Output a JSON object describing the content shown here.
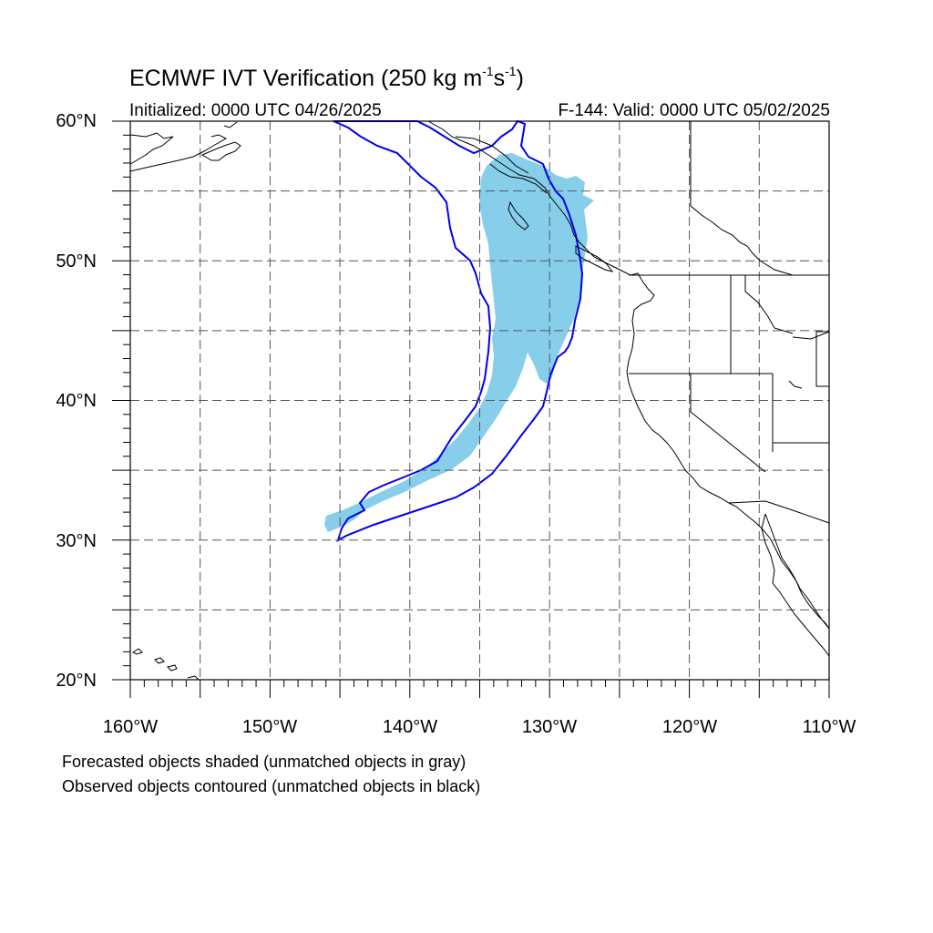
{
  "title": {
    "text": "ECMWF IVT Verification (250 kg m",
    "exp1": "-1",
    "mid": "s",
    "exp2": "-1",
    "close": ")"
  },
  "initialized": "Initialized: 0000 UTC 04/26/2025",
  "valid": "F-144: Valid: 0000 UTC 05/02/2025",
  "notes": [
    "Forecasted objects shaded (unmatched objects in gray)",
    "Observed objects contoured (unmatched objects in black)"
  ],
  "map": {
    "lat_labels": [
      "60°N",
      "50°N",
      "40°N",
      "30°N",
      "20°N"
    ],
    "lon_labels": [
      "160°W",
      "150°W",
      "140°W",
      "130°W",
      "120°W",
      "110°W"
    ],
    "extent": {
      "lon_min": -160,
      "lon_max": -110,
      "lat_min": 20,
      "lat_max": 60
    },
    "gridline_spacing_deg": 5,
    "colors": {
      "forecast_fill": "#87ceeb",
      "observed_contour": "#0000ee",
      "coastline": "#000000",
      "grid": "#555555"
    }
  }
}
